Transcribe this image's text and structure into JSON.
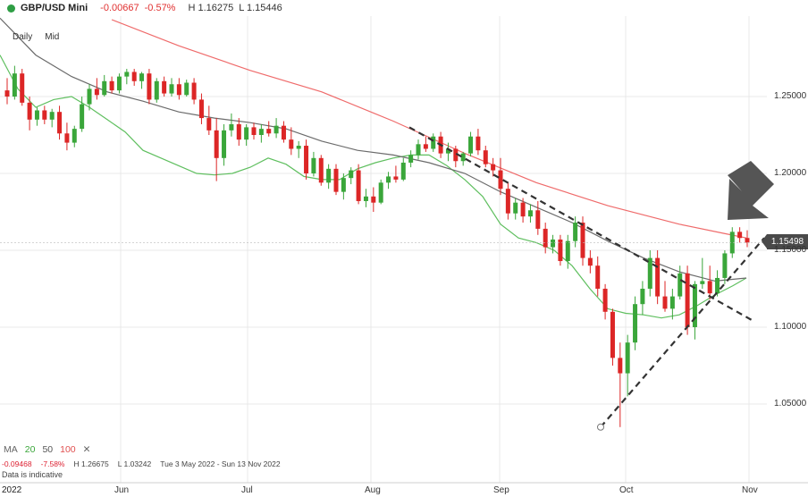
{
  "header": {
    "symbol": "GBP/USD Mini",
    "change": "-0.00667",
    "change_pct": "-0.57%",
    "high": "H 1.16275",
    "low": "L 1.15446",
    "status_color": "#2e9e44",
    "down_color": "#e03030"
  },
  "subheader": {
    "interval": "Daily",
    "price_type": "Mid"
  },
  "indicators": {
    "label": "MA",
    "ma1": "20",
    "ma2": "50",
    "ma3": "100",
    "close_icon": "close-icon"
  },
  "stats": {
    "change": "-0.09468",
    "change_pct": "-7.58%",
    "high": "H 1.26675",
    "low": "L 1.03242",
    "range": "Tue 3 May 2022 - Sun 13 Nov 2022"
  },
  "disclaimer": "Data is indicative",
  "last_price": "1.15498",
  "colors": {
    "up": "#3aa63a",
    "down": "#dc2626",
    "ma20": "#5fbf5f",
    "ma50": "#6b6b6b",
    "ma100": "#ef6b6b",
    "grid": "#e8e8e8",
    "trendline": "#333333",
    "arrow": "#555555"
  },
  "chart_data": {
    "type": "candlestick",
    "instrument": "GBP/USD Mini",
    "interval": "Daily",
    "x_tick_labels": [
      "2022",
      "Jun",
      "Jul",
      "Aug",
      "Sep",
      "Oct",
      "Nov"
    ],
    "y_tick_labels": [
      "1.25000",
      "1.20000",
      "1.15000",
      "1.10000",
      "1.05000"
    ],
    "ylim": [
      1.02,
      1.29
    ],
    "grid": true,
    "moving_averages": [
      {
        "name": "20",
        "points": [
          [
            0,
            1.277
          ],
          [
            20,
            1.255
          ],
          [
            40,
            1.243
          ],
          [
            60,
            1.248
          ],
          [
            80,
            1.25
          ],
          [
            100,
            1.243
          ],
          [
            120,
            1.235
          ],
          [
            140,
            1.227
          ],
          [
            160,
            1.215
          ],
          [
            180,
            1.21
          ],
          [
            200,
            1.205
          ],
          [
            220,
            1.2
          ],
          [
            240,
            1.199
          ],
          [
            260,
            1.2
          ],
          [
            280,
            1.204
          ],
          [
            300,
            1.21
          ],
          [
            320,
            1.206
          ],
          [
            340,
            1.198
          ],
          [
            360,
            1.196
          ],
          [
            380,
            1.196
          ],
          [
            400,
            1.203
          ],
          [
            420,
            1.207
          ],
          [
            440,
            1.21
          ],
          [
            460,
            1.212
          ],
          [
            480,
            1.212
          ],
          [
            500,
            1.205
          ],
          [
            520,
            1.196
          ],
          [
            540,
            1.185
          ],
          [
            560,
            1.167
          ],
          [
            580,
            1.158
          ],
          [
            600,
            1.155
          ],
          [
            620,
            1.15
          ],
          [
            640,
            1.14
          ],
          [
            660,
            1.125
          ],
          [
            680,
            1.112
          ],
          [
            700,
            1.109
          ],
          [
            720,
            1.108
          ],
          [
            740,
            1.106
          ],
          [
            760,
            1.108
          ],
          [
            780,
            1.114
          ],
          [
            800,
            1.121
          ],
          [
            820,
            1.127
          ],
          [
            835,
            1.132
          ]
        ]
      },
      {
        "name": "50",
        "points": [
          [
            0,
            1.301
          ],
          [
            40,
            1.277
          ],
          [
            80,
            1.263
          ],
          [
            120,
            1.253
          ],
          [
            160,
            1.247
          ],
          [
            200,
            1.24
          ],
          [
            240,
            1.236
          ],
          [
            280,
            1.233
          ],
          [
            320,
            1.229
          ],
          [
            360,
            1.221
          ],
          [
            400,
            1.215
          ],
          [
            440,
            1.212
          ],
          [
            480,
            1.207
          ],
          [
            520,
            1.2
          ],
          [
            560,
            1.188
          ],
          [
            600,
            1.178
          ],
          [
            640,
            1.168
          ],
          [
            680,
            1.156
          ],
          [
            720,
            1.145
          ],
          [
            760,
            1.136
          ],
          [
            800,
            1.13
          ],
          [
            835,
            1.132
          ]
        ]
      },
      {
        "name": "100",
        "points": [
          [
            125,
            1.3
          ],
          [
            200,
            1.283
          ],
          [
            280,
            1.267
          ],
          [
            360,
            1.253
          ],
          [
            440,
            1.234
          ],
          [
            520,
            1.213
          ],
          [
            600,
            1.194
          ],
          [
            680,
            1.179
          ],
          [
            760,
            1.167
          ],
          [
            810,
            1.161
          ],
          [
            835,
            1.158
          ]
        ]
      }
    ],
    "trendlines": [
      {
        "style": "dashed",
        "from": [
          458,
          1.23
        ],
        "to": [
          843,
          1.104
        ]
      },
      {
        "style": "dashed",
        "from": [
          672,
          1.035
        ],
        "to": [
          855,
          1.158
        ]
      }
    ],
    "annotations": [
      "low marker circle near 1.035 (late Sep)",
      "down arrow pointing at recent highs below 100 MA"
    ],
    "candles": [
      [
        1.254,
        1.262,
        1.245,
        1.25
      ],
      [
        1.25,
        1.27,
        1.248,
        1.265
      ],
      [
        1.265,
        1.268,
        1.244,
        1.246
      ],
      [
        1.246,
        1.25,
        1.228,
        1.235
      ],
      [
        1.235,
        1.243,
        1.231,
        1.241
      ],
      [
        1.241,
        1.244,
        1.232,
        1.235
      ],
      [
        1.235,
        1.242,
        1.23,
        1.24
      ],
      [
        1.24,
        1.244,
        1.222,
        1.226
      ],
      [
        1.226,
        1.233,
        1.215,
        1.22
      ],
      [
        1.22,
        1.231,
        1.217,
        1.229
      ],
      [
        1.229,
        1.25,
        1.227,
        1.245
      ],
      [
        1.245,
        1.258,
        1.241,
        1.255
      ],
      [
        1.255,
        1.262,
        1.248,
        1.251
      ],
      [
        1.251,
        1.264,
        1.25,
        1.26
      ],
      [
        1.26,
        1.263,
        1.252,
        1.254
      ],
      [
        1.254,
        1.265,
        1.252,
        1.263
      ],
      [
        1.263,
        1.268,
        1.258,
        1.266
      ],
      [
        1.266,
        1.268,
        1.257,
        1.26
      ],
      [
        1.26,
        1.266,
        1.255,
        1.265
      ],
      [
        1.265,
        1.268,
        1.245,
        1.248
      ],
      [
        1.248,
        1.262,
        1.246,
        1.26
      ],
      [
        1.26,
        1.263,
        1.25,
        1.252
      ],
      [
        1.252,
        1.262,
        1.25,
        1.258
      ],
      [
        1.258,
        1.262,
        1.248,
        1.251
      ],
      [
        1.251,
        1.261,
        1.25,
        1.259
      ],
      [
        1.259,
        1.262,
        1.245,
        1.248
      ],
      [
        1.248,
        1.252,
        1.232,
        1.236
      ],
      [
        1.236,
        1.244,
        1.225,
        1.228
      ],
      [
        1.228,
        1.236,
        1.195,
        1.21
      ],
      [
        1.21,
        1.232,
        1.205,
        1.228
      ],
      [
        1.228,
        1.239,
        1.224,
        1.232
      ],
      [
        1.232,
        1.236,
        1.218,
        1.222
      ],
      [
        1.222,
        1.232,
        1.218,
        1.23
      ],
      [
        1.23,
        1.233,
        1.222,
        1.225
      ],
      [
        1.225,
        1.232,
        1.22,
        1.229
      ],
      [
        1.229,
        1.234,
        1.224,
        1.226
      ],
      [
        1.226,
        1.236,
        1.223,
        1.231
      ],
      [
        1.231,
        1.234,
        1.22,
        1.222
      ],
      [
        1.222,
        1.23,
        1.212,
        1.216
      ],
      [
        1.216,
        1.221,
        1.21,
        1.218
      ],
      [
        1.218,
        1.222,
        1.196,
        1.2
      ],
      [
        1.2,
        1.214,
        1.198,
        1.21
      ],
      [
        1.21,
        1.212,
        1.192,
        1.194
      ],
      [
        1.194,
        1.206,
        1.19,
        1.203
      ],
      [
        1.203,
        1.206,
        1.186,
        1.188
      ],
      [
        1.188,
        1.2,
        1.183,
        1.197
      ],
      [
        1.197,
        1.204,
        1.193,
        1.202
      ],
      [
        1.202,
        1.206,
        1.18,
        1.182
      ],
      [
        1.182,
        1.19,
        1.178,
        1.185
      ],
      [
        1.185,
        1.191,
        1.175,
        1.181
      ],
      [
        1.181,
        1.196,
        1.18,
        1.194
      ],
      [
        1.194,
        1.201,
        1.19,
        1.198
      ],
      [
        1.198,
        1.205,
        1.194,
        1.196
      ],
      [
        1.196,
        1.21,
        1.195,
        1.207
      ],
      [
        1.207,
        1.215,
        1.204,
        1.212
      ],
      [
        1.212,
        1.222,
        1.209,
        1.219
      ],
      [
        1.219,
        1.224,
        1.214,
        1.216
      ],
      [
        1.216,
        1.226,
        1.214,
        1.224
      ],
      [
        1.224,
        1.227,
        1.21,
        1.213
      ],
      [
        1.213,
        1.22,
        1.208,
        1.216
      ],
      [
        1.216,
        1.218,
        1.204,
        1.208
      ],
      [
        1.208,
        1.214,
        1.205,
        1.213
      ],
      [
        1.213,
        1.227,
        1.211,
        1.224
      ],
      [
        1.224,
        1.229,
        1.212,
        1.215
      ],
      [
        1.215,
        1.218,
        1.204,
        1.206
      ],
      [
        1.206,
        1.21,
        1.198,
        1.202
      ],
      [
        1.202,
        1.21,
        1.186,
        1.19
      ],
      [
        1.19,
        1.194,
        1.17,
        1.174
      ],
      [
        1.174,
        1.184,
        1.17,
        1.181
      ],
      [
        1.181,
        1.184,
        1.168,
        1.172
      ],
      [
        1.172,
        1.18,
        1.168,
        1.176
      ],
      [
        1.176,
        1.182,
        1.16,
        1.164
      ],
      [
        1.164,
        1.168,
        1.148,
        1.152
      ],
      [
        1.152,
        1.16,
        1.148,
        1.157
      ],
      [
        1.157,
        1.16,
        1.14,
        1.143
      ],
      [
        1.143,
        1.16,
        1.138,
        1.156
      ],
      [
        1.156,
        1.172,
        1.152,
        1.168
      ],
      [
        1.168,
        1.172,
        1.14,
        1.145
      ],
      [
        1.145,
        1.15,
        1.135,
        1.14
      ],
      [
        1.14,
        1.146,
        1.12,
        1.125
      ],
      [
        1.125,
        1.128,
        1.105,
        1.11
      ],
      [
        1.11,
        1.112,
        1.075,
        1.08
      ],
      [
        1.08,
        1.09,
        1.035,
        1.07
      ],
      [
        1.07,
        1.095,
        1.055,
        1.09
      ],
      [
        1.09,
        1.12,
        1.085,
        1.115
      ],
      [
        1.115,
        1.13,
        1.108,
        1.125
      ],
      [
        1.125,
        1.15,
        1.12,
        1.145
      ],
      [
        1.145,
        1.15,
        1.115,
        1.12
      ],
      [
        1.12,
        1.13,
        1.11,
        1.112
      ],
      [
        1.112,
        1.125,
        1.105,
        1.12
      ],
      [
        1.12,
        1.14,
        1.118,
        1.135
      ],
      [
        1.135,
        1.14,
        1.095,
        1.1
      ],
      [
        1.1,
        1.13,
        1.092,
        1.128
      ],
      [
        1.128,
        1.145,
        1.125,
        1.13
      ],
      [
        1.13,
        1.14,
        1.118,
        1.122
      ],
      [
        1.122,
        1.137,
        1.12,
        1.132
      ],
      [
        1.132,
        1.15,
        1.128,
        1.148
      ],
      [
        1.148,
        1.165,
        1.145,
        1.162
      ],
      [
        1.162,
        1.165,
        1.155,
        1.158
      ],
      [
        1.158,
        1.163,
        1.152,
        1.155
      ]
    ]
  },
  "watermark": {}
}
